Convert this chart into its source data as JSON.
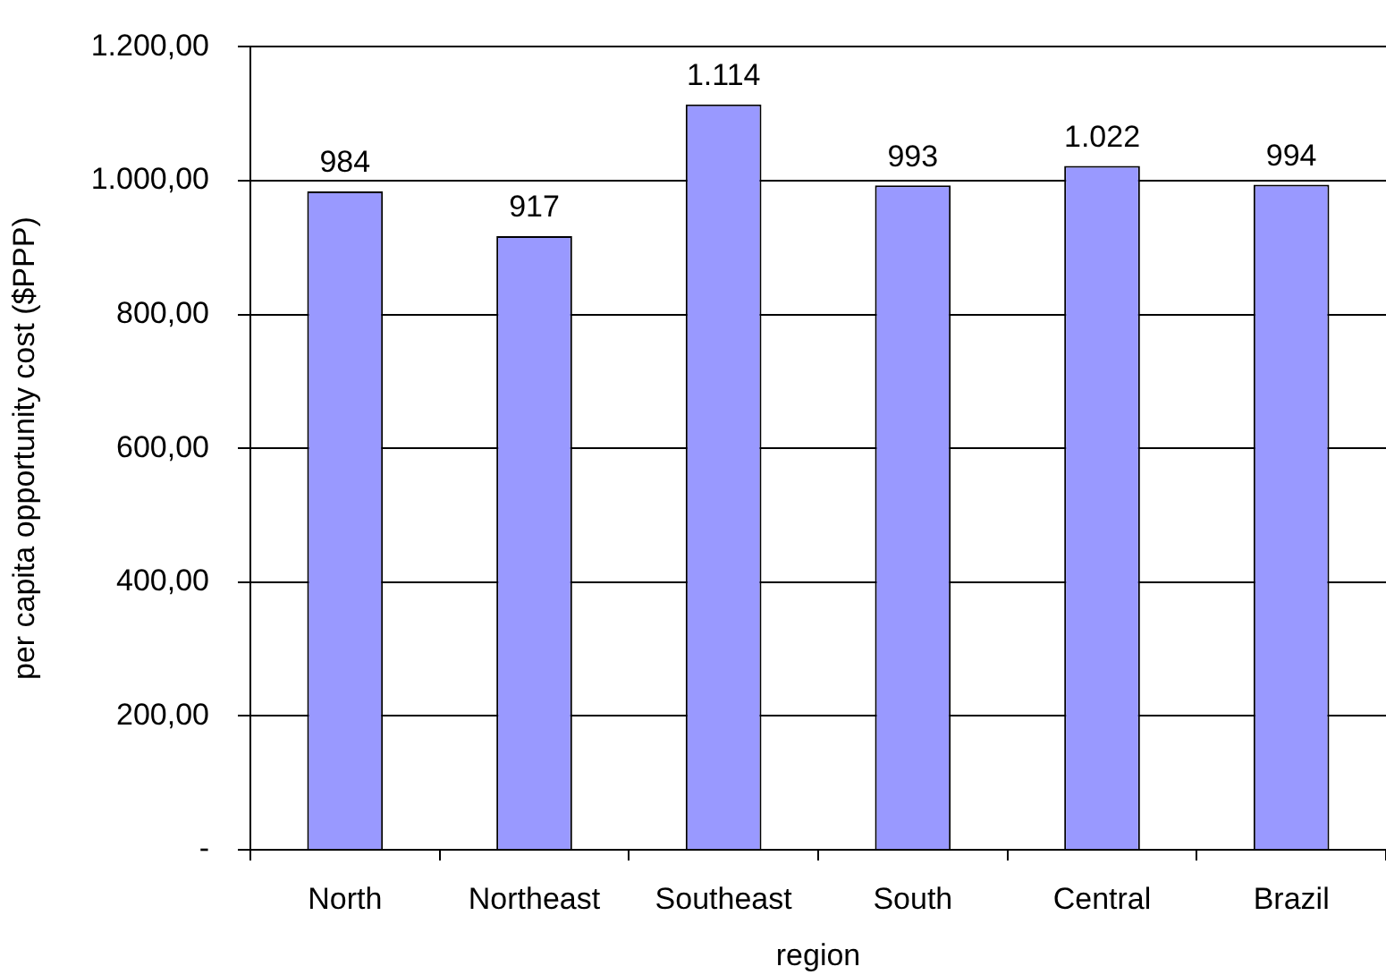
{
  "chart_data": {
    "type": "bar",
    "xlabel": "region",
    "ylabel": "per capita opportunity cost ($PPP)",
    "categories": [
      "North",
      "Northeast",
      "Southeast",
      "South",
      "Central",
      "Brazil"
    ],
    "values": [
      984,
      917,
      1114,
      993,
      1022,
      994
    ],
    "value_labels": [
      "984",
      "917",
      "1.114",
      "993",
      "1.022",
      "994"
    ],
    "color": "#9999ff",
    "ylim": [
      0,
      1200
    ],
    "yticks": [
      {
        "value": 0,
        "label": "-"
      },
      {
        "value": 200,
        "label": "200,00"
      },
      {
        "value": 400,
        "label": "400,00"
      },
      {
        "value": 600,
        "label": "600,00"
      },
      {
        "value": 800,
        "label": "800,00"
      },
      {
        "value": 1000,
        "label": "1.000,00"
      },
      {
        "value": 1200,
        "label": "1.200,00"
      }
    ],
    "grid": "y"
  }
}
